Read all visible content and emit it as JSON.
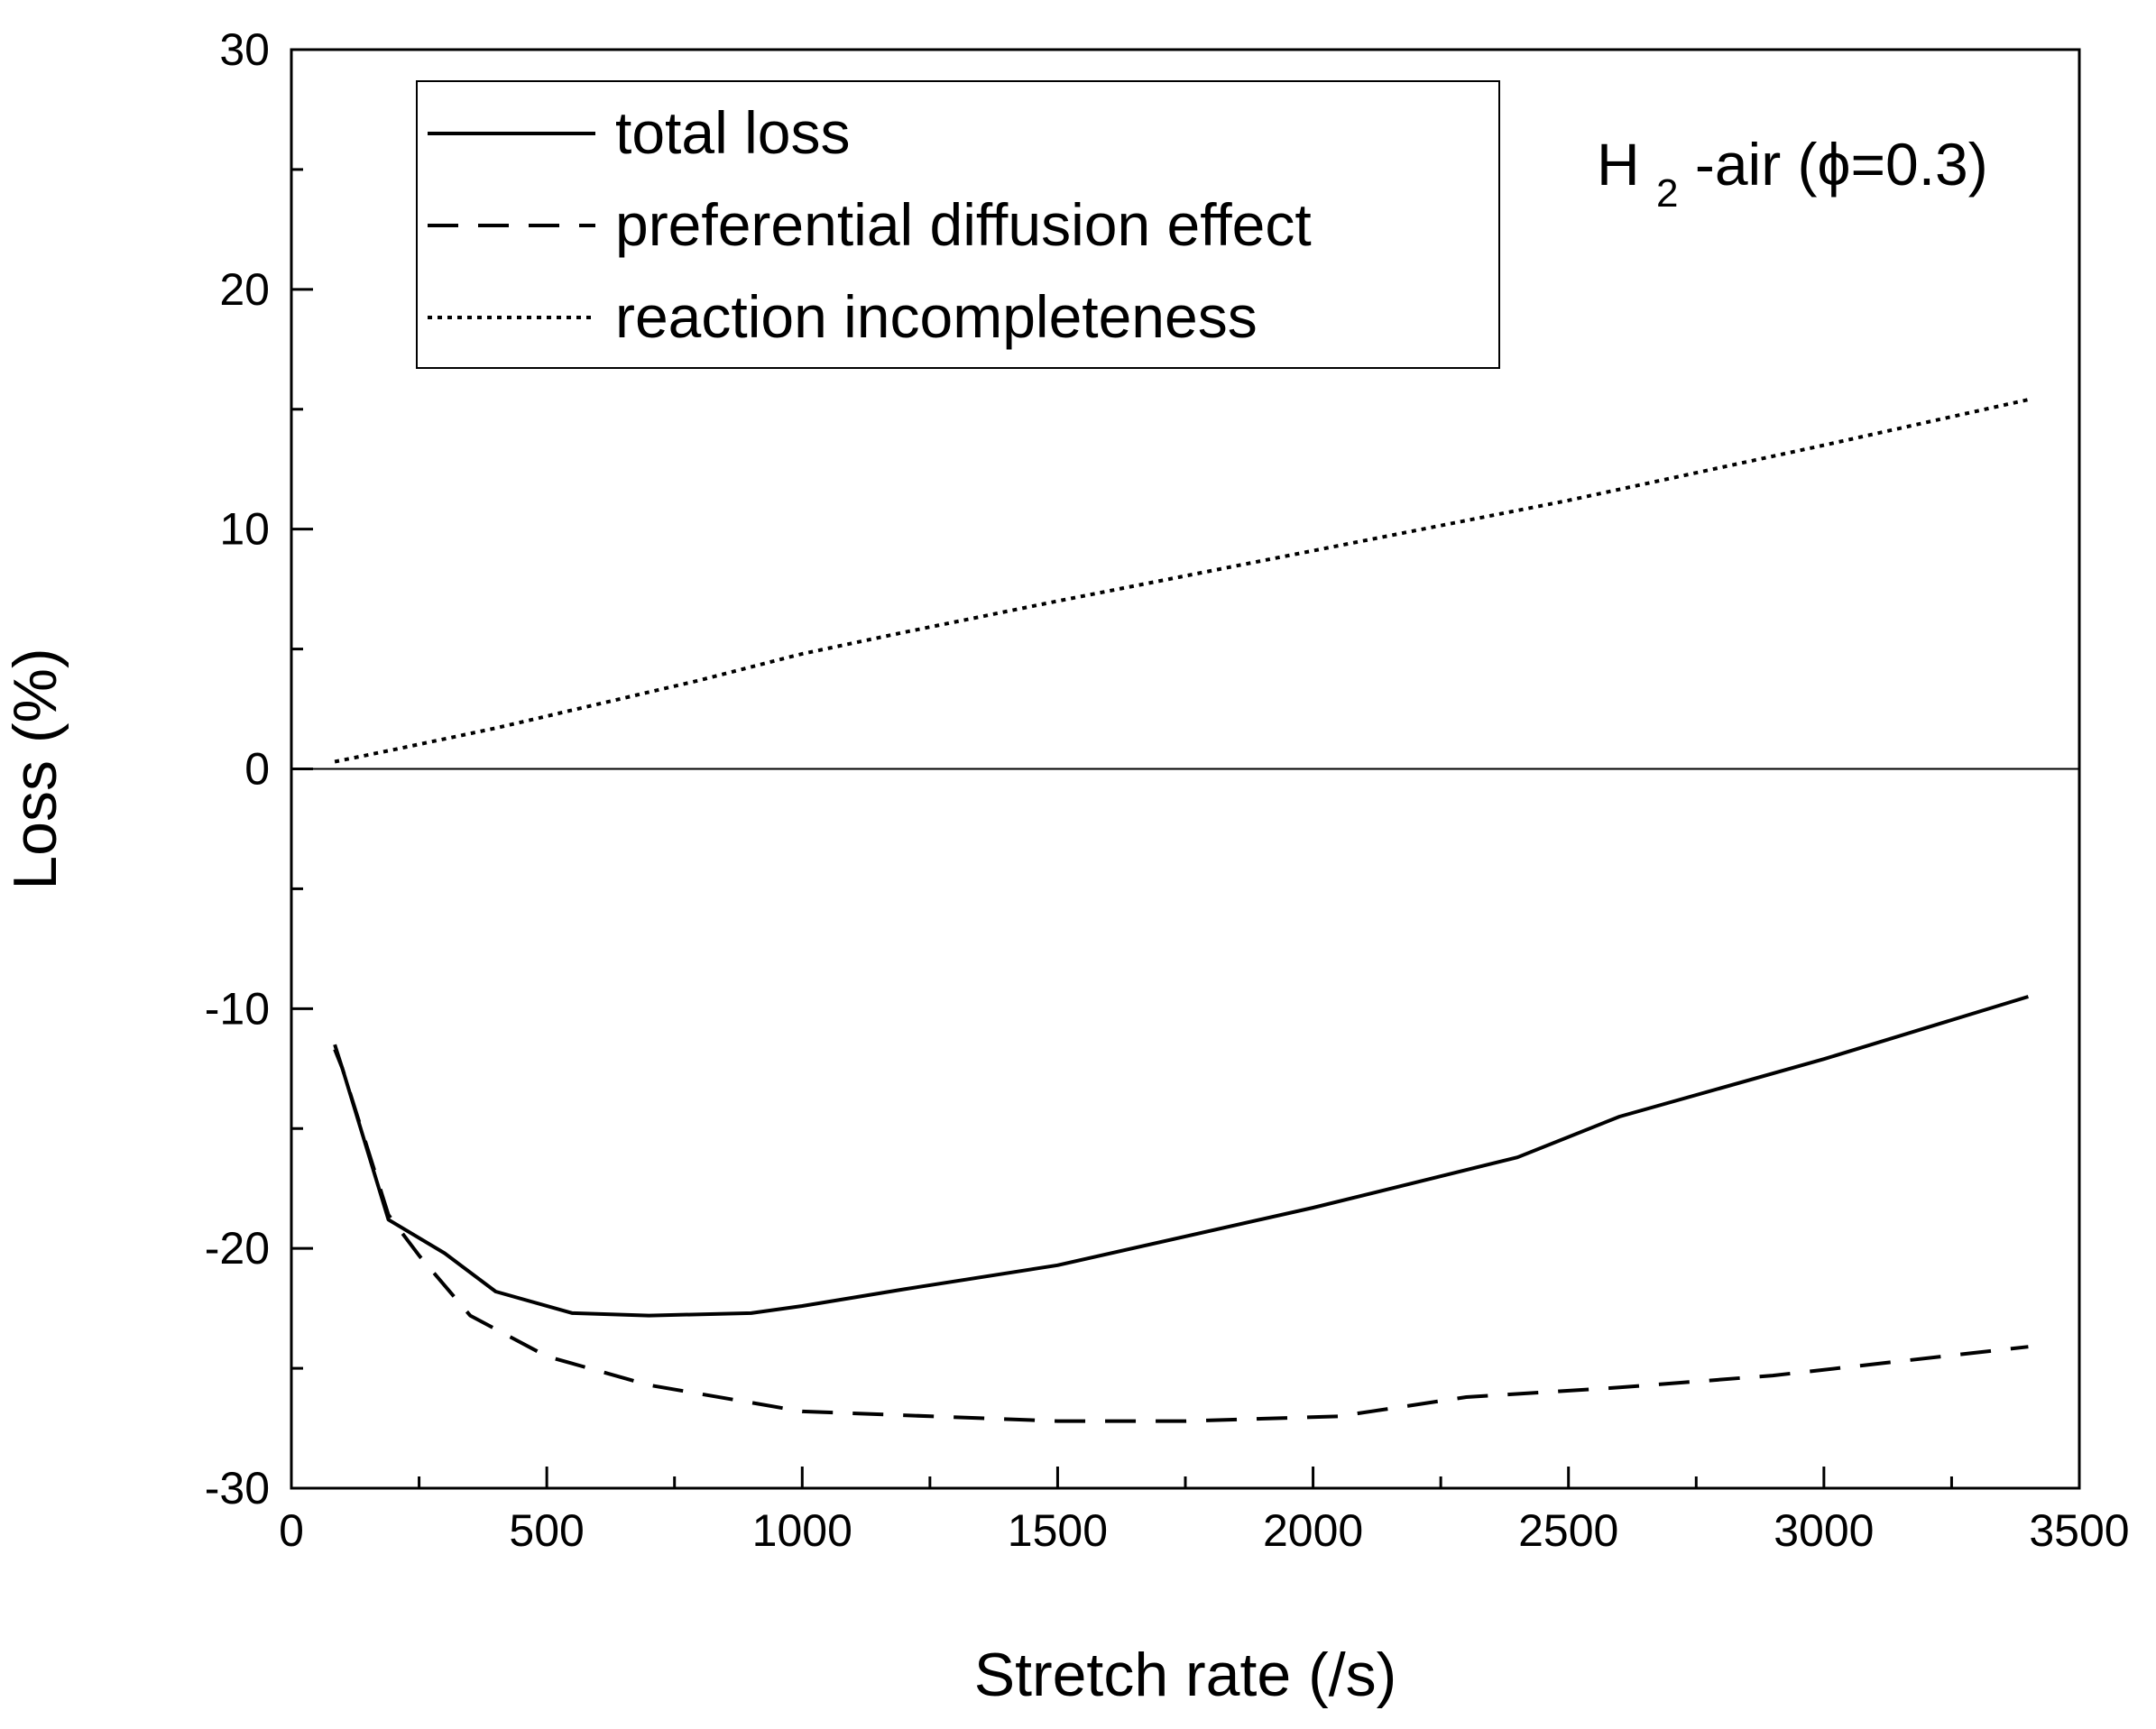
{
  "chart_data": {
    "type": "line",
    "title": "",
    "xlabel": "Stretch rate (/s)",
    "ylabel": "Loss (%)",
    "xlim": [
      0,
      3500
    ],
    "ylim": [
      -30,
      30
    ],
    "x_ticks": [
      0,
      500,
      1000,
      1500,
      2000,
      2500,
      3000,
      3500
    ],
    "y_ticks": [
      -30,
      -20,
      -10,
      0,
      10,
      20,
      30
    ],
    "x_tick_labels": [
      "0",
      "500",
      "1000",
      "1500",
      "2000",
      "2500",
      "3000",
      "3500"
    ],
    "y_tick_labels": [
      "-30",
      "-20",
      "-10",
      "0",
      "10",
      "20",
      "30"
    ],
    "zero_line": true,
    "grid": false,
    "legend_position": "top-left",
    "annotation": {
      "main": "H",
      "sub": "2",
      "rest": "-air (ϕ=0.3)"
    },
    "series": [
      {
        "name": "total loss",
        "style": "solid",
        "x": [
          85,
          100,
          190,
          300,
          400,
          550,
          700,
          900,
          1000,
          1200,
          1500,
          2000,
          2400,
          2600,
          3000,
          3400
        ],
        "y": [
          -11.7,
          -12.5,
          -18.8,
          -20.2,
          -21.8,
          -22.7,
          -22.8,
          -22.7,
          -22.4,
          -21.7,
          -20.7,
          -18.3,
          -16.2,
          -14.5,
          -12.1,
          -9.5
        ]
      },
      {
        "name": "preferential diffusion effect",
        "style": "dashed",
        "x": [
          85,
          100,
          190,
          250,
          350,
          500,
          700,
          1000,
          1500,
          1750,
          2050,
          2300,
          2600,
          2900,
          3400
        ],
        "y": [
          -11.5,
          -12.5,
          -18.6,
          -20.3,
          -22.8,
          -24.5,
          -25.7,
          -26.8,
          -27.2,
          -27.2,
          -27.0,
          -26.2,
          -25.8,
          -25.3,
          -24.1
        ]
      },
      {
        "name": "reaction incompleteness",
        "style": "dotted",
        "x": [
          85,
          200,
          400,
          600,
          800,
          1000,
          1200,
          1500,
          2000,
          2500,
          3000,
          3400
        ],
        "y": [
          0.3,
          0.8,
          1.7,
          2.7,
          3.7,
          4.8,
          5.7,
          7.0,
          9.1,
          11.2,
          13.5,
          15.4
        ]
      }
    ]
  }
}
